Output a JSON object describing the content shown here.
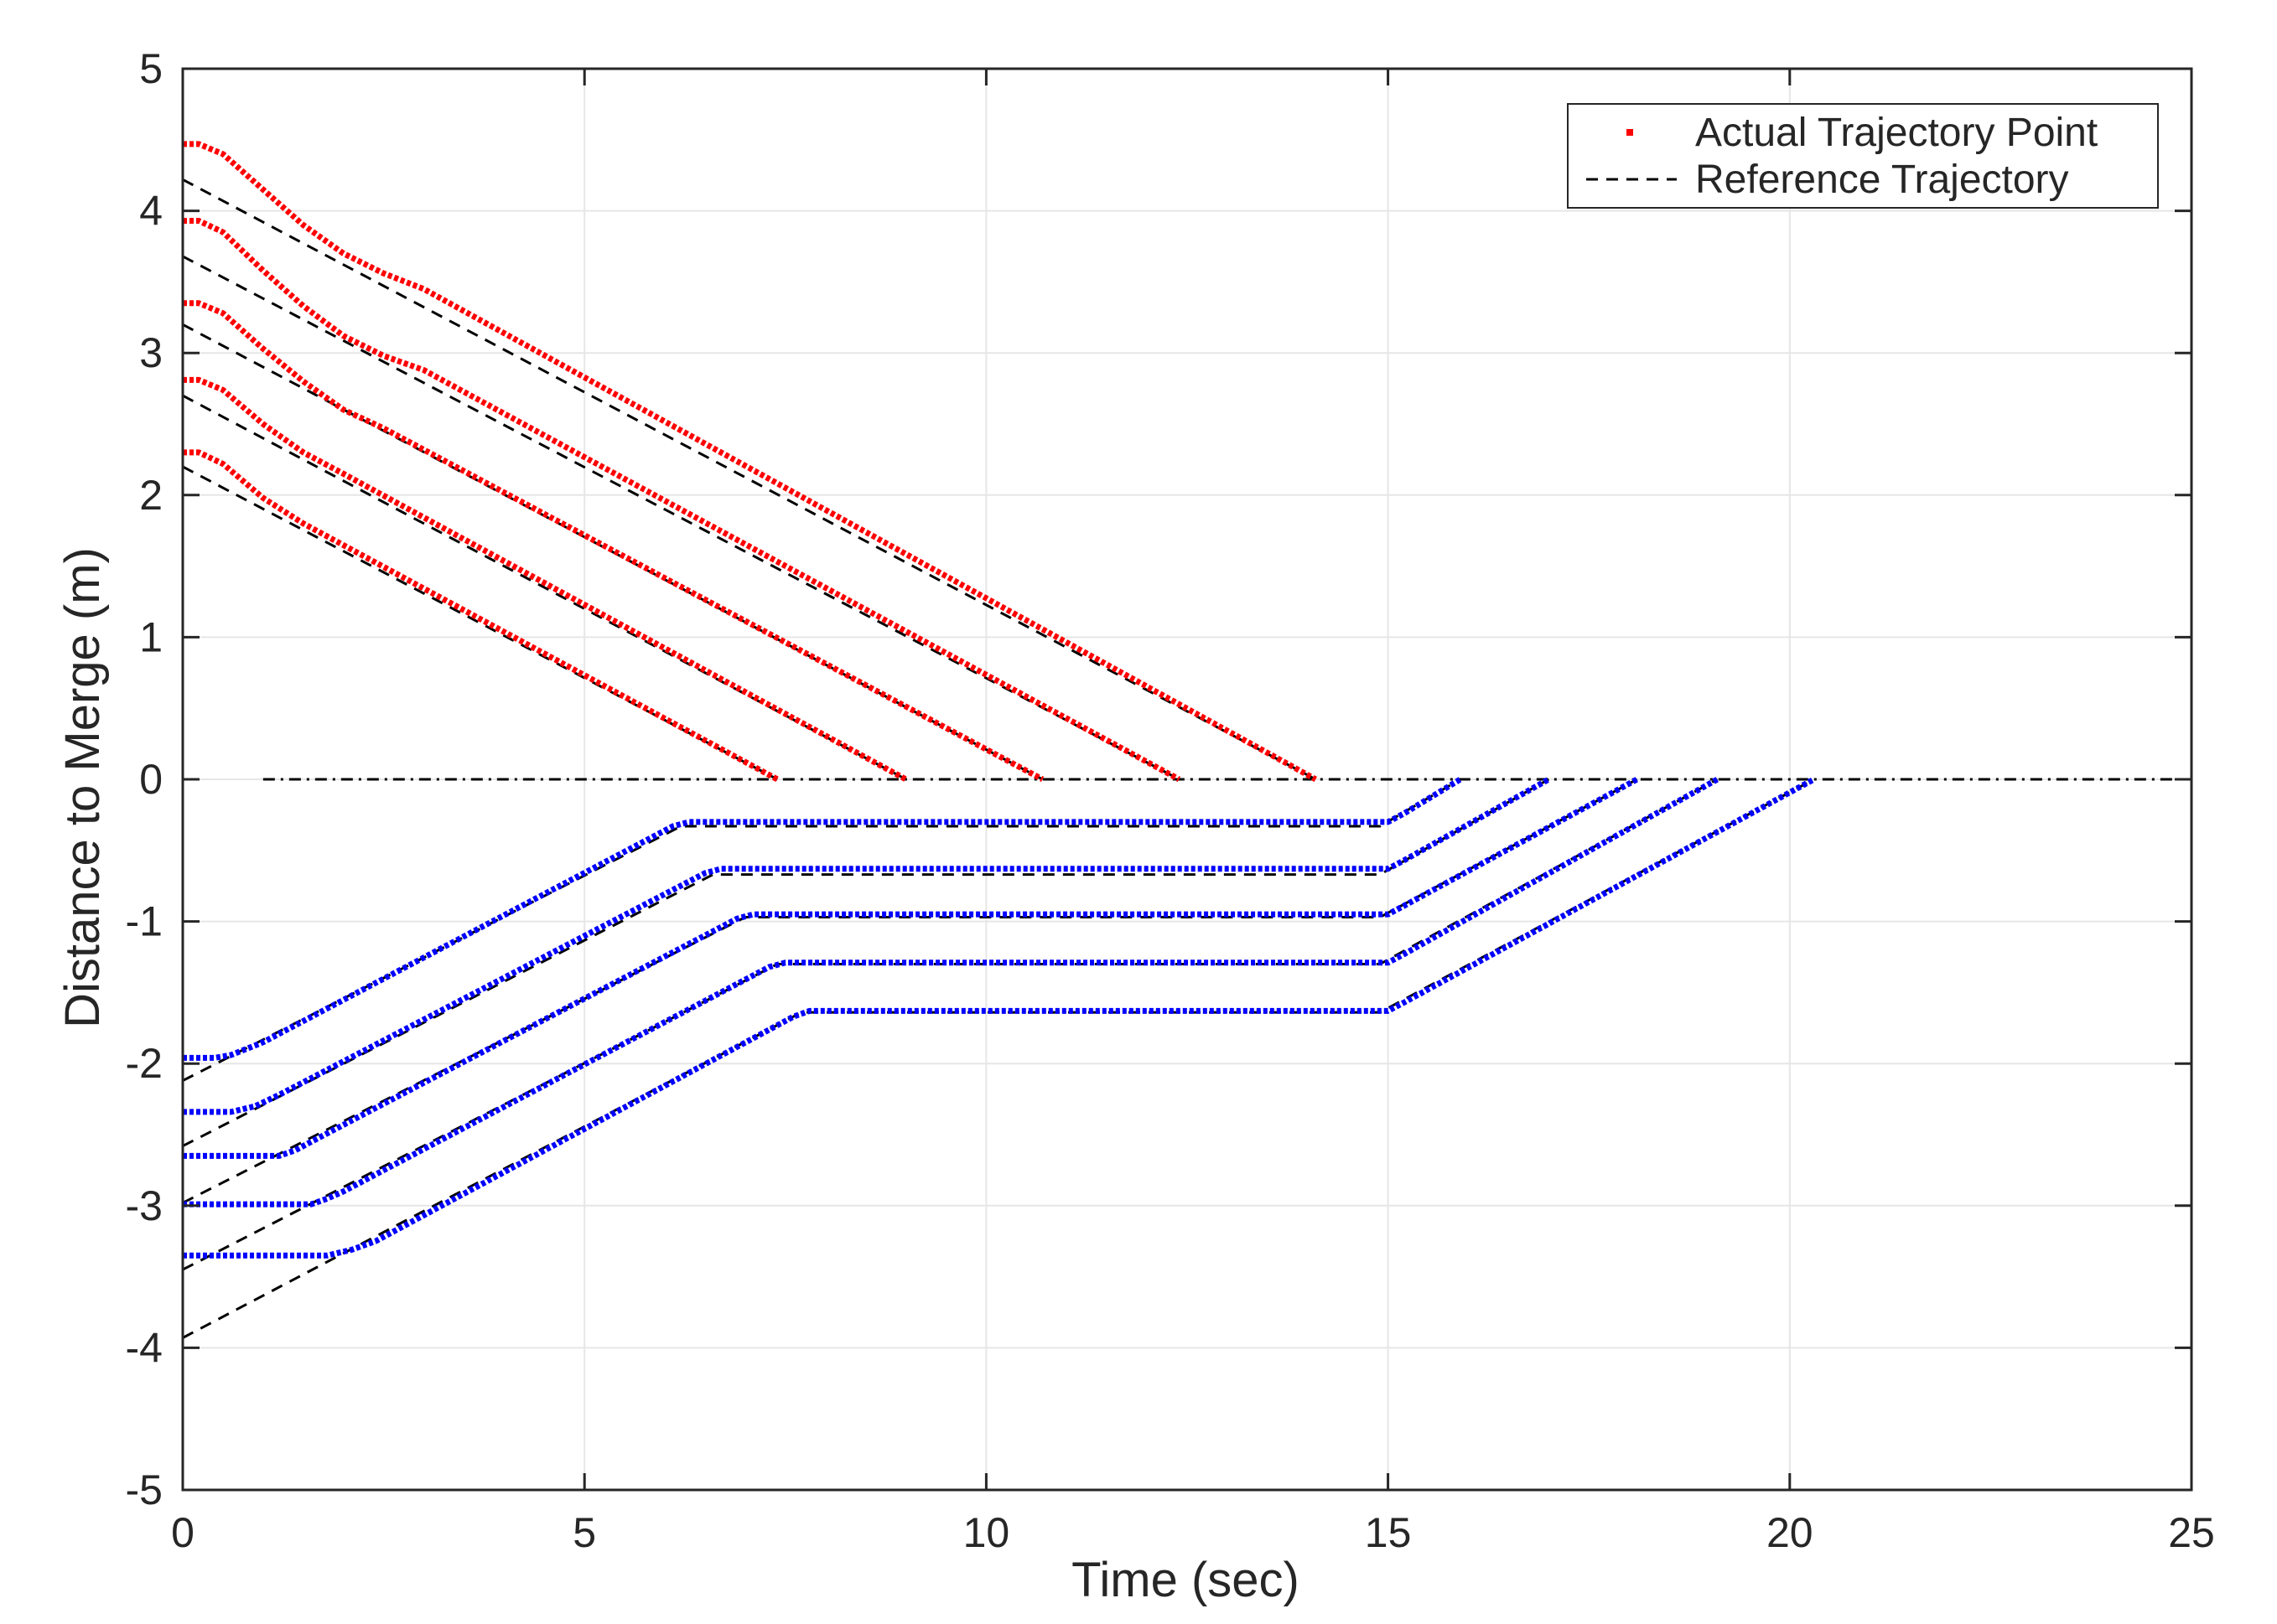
{
  "chart_data": {
    "type": "line",
    "title": "",
    "xlabel": "Time (sec)",
    "ylabel": "Distance to Merge (m)",
    "xlim": [
      0,
      25
    ],
    "ylim": [
      -5,
      5
    ],
    "xticks": [
      0,
      5,
      10,
      15,
      20,
      25
    ],
    "yticks": [
      -5,
      -4,
      -3,
      -2,
      -1,
      0,
      1,
      2,
      3,
      4,
      5
    ],
    "xtick_labels": [
      "0",
      "5",
      "10",
      "15",
      "20",
      "25"
    ],
    "ytick_labels": [
      "-5",
      "-4",
      "-3",
      "-2",
      "-1",
      "0",
      "1",
      "2",
      "3",
      "4",
      "5"
    ],
    "grid": true,
    "legend": {
      "placement": "top-right",
      "entries": [
        "Actual Trajectory Point",
        "Reference Trajectory"
      ]
    },
    "colors": {
      "actual_upper": "#ff0000",
      "actual_lower": "#0000ff",
      "reference": "#000000",
      "grid": "#e6e6e6",
      "axes": "#262626"
    },
    "merge_line": {
      "x": [
        1,
        25
      ],
      "y": 0
    },
    "series": [
      {
        "group": "upper",
        "kind": "actual",
        "x": [
          0,
          0.2,
          0.5,
          1,
          1.5,
          2,
          2.5,
          3,
          14.1
        ],
        "y": [
          4.47,
          4.47,
          4.4,
          4.15,
          3.9,
          3.7,
          3.56,
          3.45,
          0
        ]
      },
      {
        "group": "upper",
        "kind": "reference",
        "x": [
          0,
          14.1
        ],
        "y": [
          4.22,
          0
        ]
      },
      {
        "group": "upper",
        "kind": "actual",
        "x": [
          0,
          0.2,
          0.5,
          1,
          1.5,
          2,
          2.5,
          3,
          12.4
        ],
        "y": [
          3.93,
          3.93,
          3.85,
          3.58,
          3.33,
          3.12,
          2.98,
          2.88,
          0
        ]
      },
      {
        "group": "upper",
        "kind": "reference",
        "x": [
          0,
          12.4
        ],
        "y": [
          3.68,
          0
        ]
      },
      {
        "group": "upper",
        "kind": "actual",
        "x": [
          0,
          0.2,
          0.5,
          1,
          1.5,
          2,
          2.5,
          10.7
        ],
        "y": [
          3.35,
          3.35,
          3.28,
          3.03,
          2.8,
          2.6,
          2.47,
          0
        ]
      },
      {
        "group": "upper",
        "kind": "reference",
        "x": [
          0,
          10.7
        ],
        "y": [
          3.2,
          0
        ]
      },
      {
        "group": "upper",
        "kind": "actual",
        "x": [
          0,
          0.2,
          0.5,
          1,
          1.5,
          2,
          9.0
        ],
        "y": [
          2.81,
          2.81,
          2.74,
          2.5,
          2.3,
          2.15,
          0
        ]
      },
      {
        "group": "upper",
        "kind": "reference",
        "x": [
          0,
          9.0
        ],
        "y": [
          2.7,
          0
        ]
      },
      {
        "group": "upper",
        "kind": "actual",
        "x": [
          0,
          0.2,
          0.5,
          1,
          1.5,
          7.4
        ],
        "y": [
          2.3,
          2.3,
          2.22,
          1.98,
          1.8,
          0
        ]
      },
      {
        "group": "upper",
        "kind": "reference",
        "x": [
          0,
          7.4
        ],
        "y": [
          2.2,
          0
        ]
      },
      {
        "group": "lower",
        "kind": "actual",
        "x": [
          0,
          0.4,
          0.6,
          1.0,
          6.1,
          6.3,
          15.0,
          15.2,
          15.9
        ],
        "y": [
          -1.96,
          -1.96,
          -1.94,
          -1.85,
          -0.33,
          -0.3,
          -0.3,
          -0.24,
          0
        ]
      },
      {
        "group": "lower",
        "kind": "reference",
        "x": [
          0,
          6.2,
          14.9,
          15.9
        ],
        "y": [
          -2.12,
          -0.33,
          -0.33,
          0
        ]
      },
      {
        "group": "lower",
        "kind": "actual",
        "x": [
          0,
          0.6,
          0.9,
          1.2,
          6.5,
          6.7,
          15.0,
          15.2,
          17.0
        ],
        "y": [
          -2.34,
          -2.34,
          -2.3,
          -2.22,
          -0.66,
          -0.63,
          -0.63,
          -0.57,
          0
        ]
      },
      {
        "group": "lower",
        "kind": "reference",
        "x": [
          0,
          6.6,
          14.9,
          17.0
        ],
        "y": [
          -2.58,
          -0.67,
          -0.67,
          0
        ]
      },
      {
        "group": "lower",
        "kind": "actual",
        "x": [
          0,
          1.2,
          1.4,
          1.6,
          6.9,
          7.1,
          15.0,
          15.2,
          18.1
        ],
        "y": [
          -2.65,
          -2.65,
          -2.61,
          -2.55,
          -0.98,
          -0.95,
          -0.95,
          -0.89,
          0
        ]
      },
      {
        "group": "lower",
        "kind": "reference",
        "x": [
          0,
          7.0,
          14.9,
          18.1
        ],
        "y": [
          -2.98,
          -0.97,
          -0.97,
          0
        ]
      },
      {
        "group": "lower",
        "kind": "actual",
        "x": [
          0,
          1.6,
          1.8,
          2.0,
          7.3,
          7.5,
          15.0,
          15.2,
          19.1
        ],
        "y": [
          -2.99,
          -2.99,
          -2.95,
          -2.9,
          -1.32,
          -1.29,
          -1.29,
          -1.23,
          0
        ]
      },
      {
        "group": "lower",
        "kind": "reference",
        "x": [
          0,
          7.4,
          14.9,
          19.1
        ],
        "y": [
          -3.45,
          -1.3,
          -1.3,
          0
        ]
      },
      {
        "group": "lower",
        "kind": "actual",
        "x": [
          0,
          1.8,
          2.1,
          2.4,
          7.6,
          7.8,
          15.0,
          15.2,
          20.3
        ],
        "y": [
          -3.35,
          -3.35,
          -3.31,
          -3.25,
          -1.67,
          -1.63,
          -1.63,
          -1.57,
          0
        ]
      },
      {
        "group": "lower",
        "kind": "reference",
        "x": [
          0,
          7.7,
          14.9,
          20.3
        ],
        "y": [
          -3.93,
          -1.64,
          -1.64,
          0
        ]
      }
    ]
  }
}
